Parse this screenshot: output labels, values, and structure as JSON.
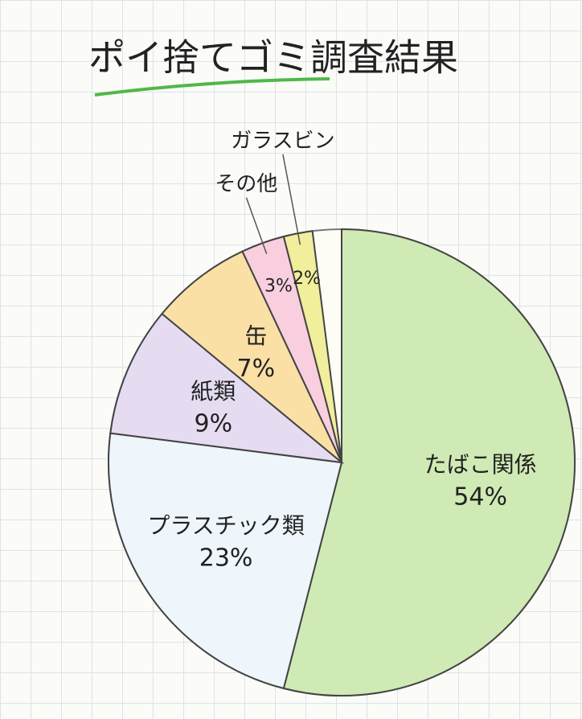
{
  "chart_data": {
    "type": "pie",
    "title": "ポイ捨てゴミ調査結果",
    "categories": [
      "たばこ関係",
      "プラスチック類",
      "紙類",
      "缶",
      "その他",
      "ガラスビン"
    ],
    "values": [
      54,
      23,
      9,
      7,
      3,
      2
    ],
    "value_labels": [
      "54%",
      "23%",
      "9%",
      "7%",
      "3%",
      "2%"
    ],
    "colors": [
      "#cfeab4",
      "#eef6fb",
      "#e6dcf2",
      "#fbe0a6",
      "#f9cfe0",
      "#f1ee9c"
    ]
  }
}
